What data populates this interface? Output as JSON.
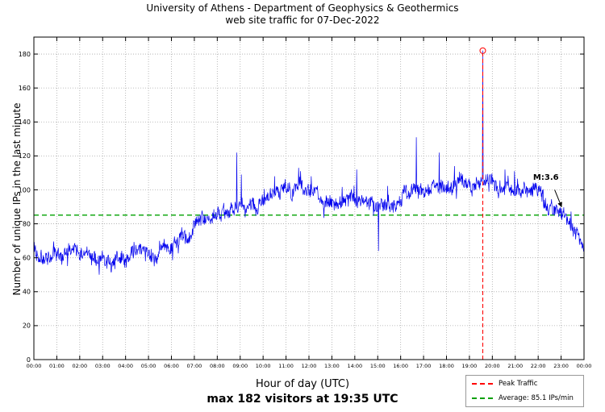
{
  "chart_data": {
    "type": "line",
    "title": "University of Athens - Department of Geophysics & Geothermics",
    "subtitle": "web site traffic for 07-Dec-2022",
    "xlabel": "Hour of day (UTC)",
    "xlabel_note": "max 182 visitors at 19:35 UTC",
    "ylabel": "Number of unique IPs in the last minute",
    "x_tick_labels": [
      "00:00",
      "01:00",
      "02:00",
      "03:00",
      "04:00",
      "05:00",
      "06:00",
      "07:00",
      "08:00",
      "09:00",
      "10:00",
      "11:00",
      "12:00",
      "13:00",
      "14:00",
      "15:00",
      "16:00",
      "17:00",
      "18:00",
      "19:00",
      "20:00",
      "21:00",
      "22:00",
      "23:00",
      "00:00"
    ],
    "y_ticks": [
      0,
      20,
      40,
      60,
      80,
      100,
      120,
      140,
      160,
      180
    ],
    "ylim": [
      0,
      190
    ],
    "xlim_hours": [
      0,
      24
    ],
    "grid": true,
    "average_ips_per_min": 85.1,
    "peak": {
      "time": "19:35",
      "hour": 19.583,
      "value": 182
    },
    "legend": {
      "position": "below-right",
      "entries": [
        {
          "label": "Peak Traffic",
          "color": "#ff0000",
          "style": "dashed"
        },
        {
          "label": "Average: 85.1 IPs/min",
          "color": "#00a000",
          "style": "dashed"
        }
      ]
    },
    "series": {
      "name": "unique IPs in the last minute",
      "color": "#0000ee",
      "trend_points_hour_value": [
        [
          0,
          66
        ],
        [
          0.3,
          64
        ],
        [
          0.7,
          63
        ],
        [
          1,
          65
        ],
        [
          1.3,
          66
        ],
        [
          1.7,
          64
        ],
        [
          2,
          63
        ],
        [
          2.3,
          62
        ],
        [
          2.7,
          61
        ],
        [
          3,
          60
        ],
        [
          3.3,
          59
        ],
        [
          3.7,
          60
        ],
        [
          4,
          60
        ],
        [
          4.3,
          61
        ],
        [
          4.7,
          62
        ],
        [
          5,
          63
        ],
        [
          5.3,
          64
        ],
        [
          5.7,
          66
        ],
        [
          6,
          68
        ],
        [
          6.3,
          70
        ],
        [
          6.7,
          73
        ],
        [
          7,
          76
        ],
        [
          7.3,
          79
        ],
        [
          7.7,
          82
        ],
        [
          8,
          84
        ],
        [
          8.3,
          86
        ],
        [
          8.7,
          88
        ],
        [
          9,
          90
        ],
        [
          9.3,
          92
        ],
        [
          9.7,
          94
        ],
        [
          10,
          95
        ],
        [
          10.3,
          96
        ],
        [
          10.7,
          97
        ],
        [
          11,
          98
        ],
        [
          11.3,
          100
        ],
        [
          11.6,
          102
        ],
        [
          11.8,
          99
        ],
        [
          12,
          97
        ],
        [
          12.3,
          95
        ],
        [
          12.7,
          93
        ],
        [
          13,
          92
        ],
        [
          13.3,
          93
        ],
        [
          13.7,
          95
        ],
        [
          14,
          96
        ],
        [
          14.3,
          94
        ],
        [
          14.7,
          92
        ],
        [
          15,
          91
        ],
        [
          15.3,
          92
        ],
        [
          15.7,
          94
        ],
        [
          16,
          95
        ],
        [
          16.3,
          96
        ],
        [
          16.7,
          98
        ],
        [
          17,
          99
        ],
        [
          17.3,
          100
        ],
        [
          17.7,
          101
        ],
        [
          18,
          101
        ],
        [
          18.3,
          102
        ],
        [
          18.7,
          102
        ],
        [
          19,
          103
        ],
        [
          19.3,
          104
        ],
        [
          19.6,
          104
        ],
        [
          20,
          103
        ],
        [
          20.3,
          102
        ],
        [
          20.7,
          101
        ],
        [
          21,
          101
        ],
        [
          21.3,
          100
        ],
        [
          21.7,
          98
        ],
        [
          22,
          96
        ],
        [
          22.3,
          93
        ],
        [
          22.7,
          90
        ],
        [
          23,
          86
        ],
        [
          23.2,
          84
        ],
        [
          23.4,
          81
        ],
        [
          23.6,
          78
        ],
        [
          23.8,
          74
        ],
        [
          24,
          71
        ]
      ],
      "spikes_hour_value": [
        [
          2.85,
          50
        ],
        [
          8.85,
          122
        ],
        [
          9.05,
          109
        ],
        [
          10.5,
          108
        ],
        [
          11.55,
          113
        ],
        [
          11.63,
          111
        ],
        [
          12.1,
          108
        ],
        [
          14.08,
          112
        ],
        [
          15.03,
          64
        ],
        [
          16.68,
          131
        ],
        [
          17.68,
          122
        ],
        [
          18.35,
          114
        ],
        [
          19.583,
          182
        ],
        [
          20.55,
          112
        ],
        [
          20.97,
          111
        ]
      ],
      "noise_amplitude": 4
    },
    "annotation": {
      "label": "M:3.6",
      "text_hour": 21.78,
      "text_value": 106,
      "arrow_from_hour": 22.72,
      "arrow_from_value": 100,
      "arrow_to_hour": 23.02,
      "arrow_to_value": 90
    },
    "colors": {
      "series": "#0000ee",
      "peak": "#ff0000",
      "average": "#00a000",
      "grid": "#aaaaaa",
      "axis": "#000000"
    }
  }
}
